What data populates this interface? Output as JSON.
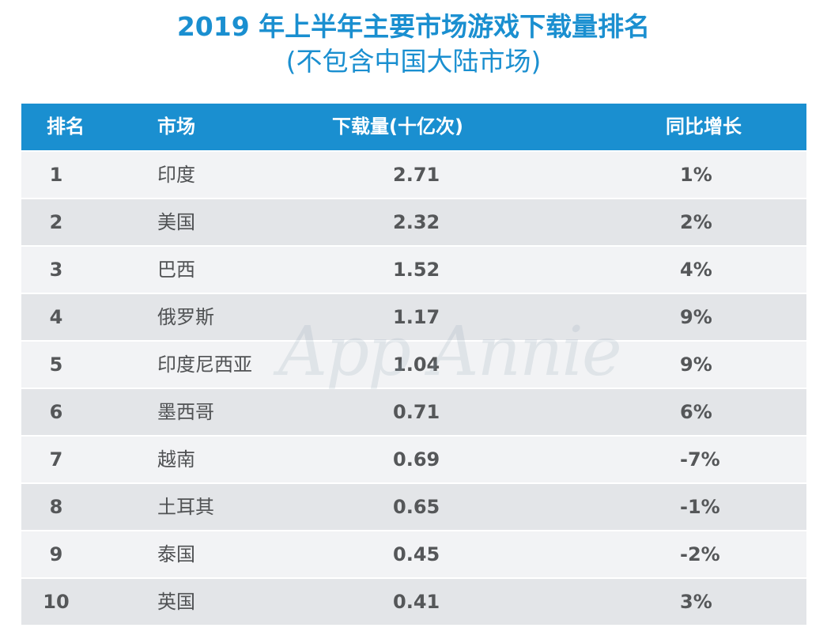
{
  "title": {
    "line1": "2019 年上半年主要市场游戏下载量排名",
    "line2": "(不包含中国大陆市场)"
  },
  "watermark": "App Annie",
  "colors": {
    "accent": "#1a8fd0",
    "header_text": "#ffffff",
    "row_odd": "#f2f3f5",
    "row_even": "#e3e5e8",
    "body_text": "#555759"
  },
  "chart_data": {
    "type": "table",
    "title": "2019 年上半年主要市场游戏下载量排名 (不包含中国大陆市场)",
    "columns": [
      "排名",
      "市场",
      "下载量(十亿次)",
      "同比增长"
    ],
    "rows": [
      [
        "1",
        "印度",
        "2.71",
        "1%"
      ],
      [
        "2",
        "美国",
        "2.32",
        "2%"
      ],
      [
        "3",
        "巴西",
        "1.52",
        "4%"
      ],
      [
        "4",
        "俄罗斯",
        "1.17",
        "9%"
      ],
      [
        "5",
        "印度尼西亚",
        "1.04",
        "9%"
      ],
      [
        "6",
        "墨西哥",
        "0.71",
        "6%"
      ],
      [
        "7",
        "越南",
        "0.69",
        "-7%"
      ],
      [
        "8",
        "土耳其",
        "0.65",
        "-1%"
      ],
      [
        "9",
        "泰国",
        "0.45",
        "-2%"
      ],
      [
        "10",
        "英国",
        "0.41",
        "3%"
      ]
    ]
  }
}
